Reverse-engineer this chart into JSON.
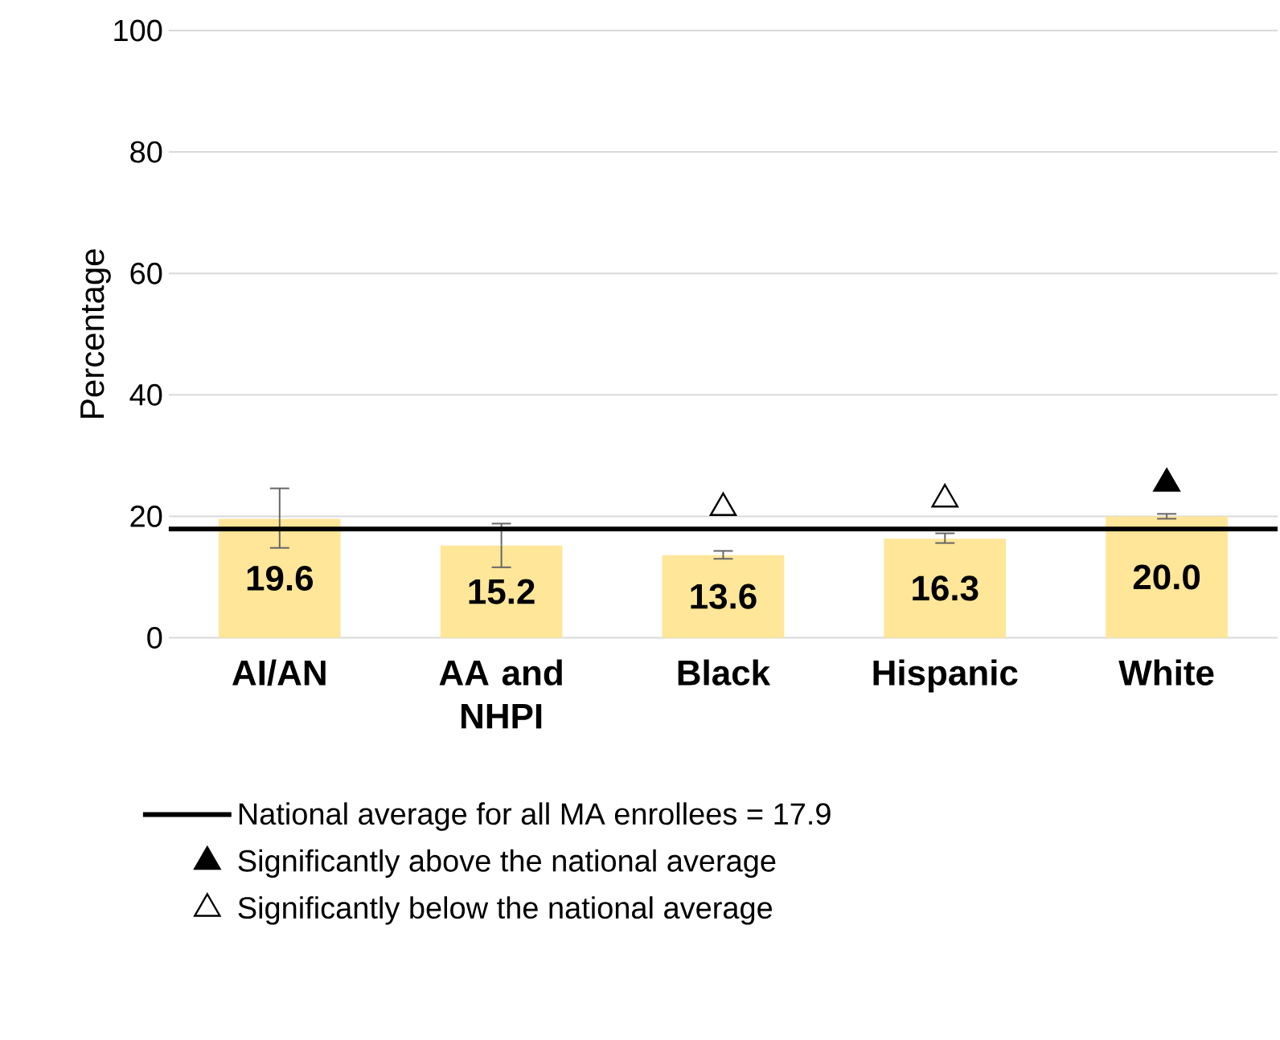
{
  "chart_data": {
    "type": "bar",
    "ylabel": "Percentage",
    "categories": [
      "AI/AN",
      "AA and NHPI",
      "Black",
      "Hispanic",
      "White"
    ],
    "values": [
      19.6,
      15.2,
      13.6,
      16.3,
      20.0
    ],
    "color": "#ffe699",
    "errors": [
      [
        14.8,
        24.6
      ],
      [
        11.6,
        18.8
      ],
      [
        13.0,
        14.3
      ],
      [
        15.6,
        17.2
      ],
      [
        19.6,
        20.4
      ]
    ],
    "value_labels": [
      "19.6",
      "15.2",
      "13.6",
      "16.3",
      "20.0"
    ],
    "series": [
      {
        "name": "Significantly above the national average",
        "type": "scatter",
        "color": "#000000",
        "marker": "triangle",
        "x": [
          "White"
        ],
        "values": [
          25.4
        ]
      },
      {
        "name": "Significantly below the national average",
        "type": "scatter",
        "color": "#ffffff",
        "marker": "triangle",
        "x": [
          "Black",
          "Hispanic"
        ],
        "values": [
          21.4,
          22.8
        ]
      }
    ],
    "ref_lines": [
      {
        "axis": "y",
        "value": 17.9,
        "label": "National average for all MA enrollees = 17.9",
        "color": "#000000",
        "line_style": "solid"
      }
    ],
    "ylim": [
      0,
      100
    ],
    "yticks": [
      0,
      20,
      40,
      60,
      80,
      100
    ],
    "grid": "y",
    "legend": "bottom"
  }
}
